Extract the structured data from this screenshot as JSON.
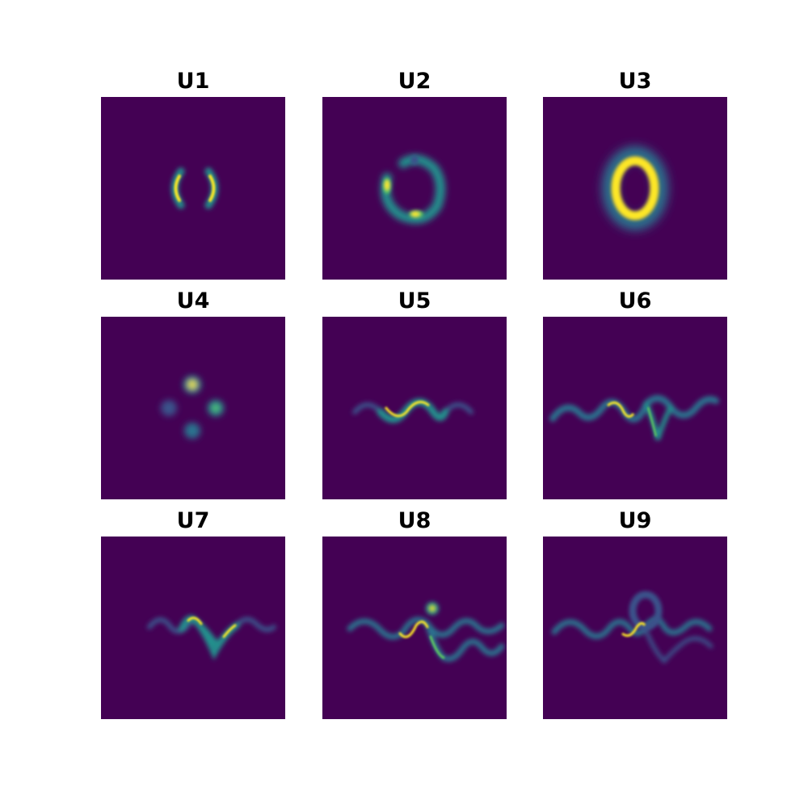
{
  "figure": {
    "panel_titles": [
      "U1",
      "U2",
      "U3",
      "U4",
      "U5",
      "U6",
      "U7",
      "U8",
      "U9"
    ]
  },
  "colors": {
    "background": "#440154",
    "low": "#3b528b",
    "mid": "#21908d",
    "high": "#5ec962",
    "peak": "#fde725"
  },
  "chart_data": [
    {
      "type": "heatmap",
      "title": "U1",
      "colormap": "viridis",
      "pattern": "two opposing crescent arcs (left and right)",
      "xticks": [],
      "yticks": []
    },
    {
      "type": "heatmap",
      "title": "U2",
      "colormap": "viridis",
      "pattern": "broken ring with two bright spots",
      "xticks": [],
      "yticks": []
    },
    {
      "type": "heatmap",
      "title": "U3",
      "colormap": "viridis",
      "pattern": "bright elliptical ring",
      "xticks": [],
      "yticks": []
    },
    {
      "type": "heatmap",
      "title": "U4",
      "colormap": "viridis",
      "pattern": "four blobs in a diamond, top brightest",
      "xticks": [],
      "yticks": []
    },
    {
      "type": "heatmap",
      "title": "U5",
      "colormap": "viridis",
      "pattern": "single sinusoidal wave band",
      "xticks": [],
      "yticks": []
    },
    {
      "type": "heatmap",
      "title": "U6",
      "colormap": "viridis",
      "pattern": "sinusoidal wave with a lower branch",
      "xticks": [],
      "yticks": []
    },
    {
      "type": "heatmap",
      "title": "U7",
      "colormap": "viridis",
      "pattern": "wave with a deep V branch",
      "xticks": [],
      "yticks": []
    },
    {
      "type": "heatmap",
      "title": "U8",
      "colormap": "viridis",
      "pattern": "wave, shifted lower wave and a small blob",
      "xticks": [],
      "yticks": []
    },
    {
      "type": "heatmap",
      "title": "U9",
      "colormap": "viridis",
      "pattern": "wave with a ring above and a faint lower branch",
      "xticks": [],
      "yticks": []
    }
  ]
}
